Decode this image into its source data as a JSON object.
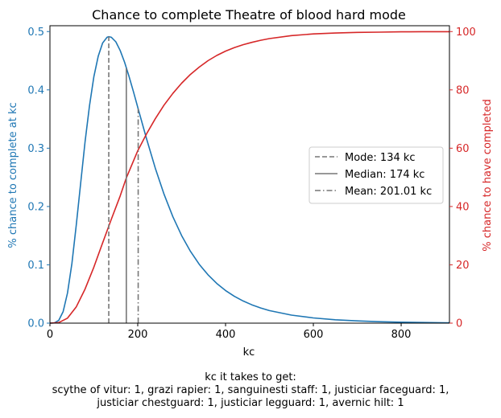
{
  "chart_data": {
    "type": "line",
    "title": "Chance to complete Theatre of blood hard mode",
    "xlabel": "kc",
    "ylabel_left": "% chance to complete at kc",
    "ylabel_right": "% chance to have completed",
    "xlim": [
      0,
      910
    ],
    "ylim_left": [
      0,
      0.51
    ],
    "ylim_right": [
      0,
      102
    ],
    "x_ticks": [
      0,
      200,
      400,
      600,
      800
    ],
    "y_left_ticks": [
      0.0,
      0.1,
      0.2,
      0.3,
      0.4,
      0.5
    ],
    "y_right_ticks": [
      0,
      20,
      40,
      60,
      80,
      100
    ],
    "grid": false,
    "legend_position": "center-right",
    "series": [
      {
        "name": "",
        "axis": "left",
        "color": "#1f77b4",
        "x": [
          0,
          10,
          20,
          30,
          40,
          50,
          60,
          70,
          80,
          90,
          100,
          110,
          120,
          130,
          134,
          140,
          150,
          160,
          170,
          180,
          190,
          200,
          220,
          240,
          260,
          280,
          300,
          320,
          340,
          360,
          380,
          400,
          420,
          440,
          460,
          480,
          500,
          550,
          600,
          650,
          700,
          750,
          800,
          850,
          900,
          910
        ],
        "y": [
          0,
          0.0004,
          0.0047,
          0.0198,
          0.0517,
          0.1025,
          0.1684,
          0.2407,
          0.3109,
          0.3727,
          0.4223,
          0.4581,
          0.4803,
          0.4902,
          0.4912,
          0.4902,
          0.4825,
          0.4676,
          0.4473,
          0.4234,
          0.3973,
          0.3703,
          0.3163,
          0.2658,
          0.221,
          0.1825,
          0.1501,
          0.1232,
          0.1011,
          0.083,
          0.0681,
          0.056,
          0.0461,
          0.038,
          0.0314,
          0.026,
          0.0215,
          0.0138,
          0.0089,
          0.0058,
          0.0038,
          0.0025,
          0.0016,
          0.0011,
          0.0007,
          0.0007
        ]
      },
      {
        "name": "",
        "axis": "right",
        "color": "#d62728",
        "x": [
          0,
          20,
          40,
          60,
          80,
          100,
          120,
          140,
          160,
          174,
          200,
          220,
          240,
          260,
          280,
          300,
          320,
          340,
          360,
          380,
          400,
          420,
          440,
          460,
          480,
          500,
          550,
          600,
          650,
          700,
          750,
          800,
          850,
          900,
          910
        ],
        "y": [
          0,
          0.2,
          1.7,
          5.6,
          11.7,
          19.2,
          27.5,
          35.7,
          43.6,
          49.8,
          59.1,
          64.9,
          70.1,
          74.8,
          78.8,
          82.3,
          85.3,
          87.8,
          90.0,
          91.8,
          93.3,
          94.5,
          95.5,
          96.3,
          97.0,
          97.6,
          98.6,
          99.2,
          99.5,
          99.7,
          99.8,
          99.9,
          99.95,
          99.97,
          99.97
        ]
      }
    ],
    "markers": [
      {
        "name": "Mode: 134 kc",
        "x": 134,
        "y_top": 0.4912,
        "style": "dashed"
      },
      {
        "name": "Median: 174 kc",
        "x": 174,
        "y_top": 0.4372,
        "style": "solid"
      },
      {
        "name": "Mean: 201.01 kc",
        "x": 201.01,
        "y_top": 0.3676,
        "style": "dashdot"
      }
    ],
    "annotation": {
      "line1": "kc it takes to get:",
      "line2": "scythe of vitur: 1,  grazi rapier: 1,  sanguinesti staff: 1,  justiciar faceguard: 1,",
      "line3": "justiciar chestguard: 1,  justiciar legguard: 1,  avernic hilt: 1"
    },
    "colors": {
      "left_axis": "#1f77b4",
      "right_axis": "#d62728",
      "marker": "#777777"
    }
  }
}
